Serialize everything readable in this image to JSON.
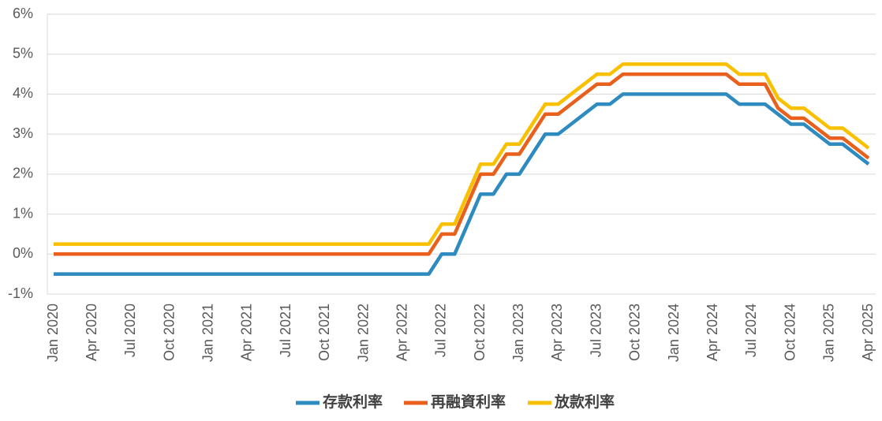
{
  "chart_data": {
    "type": "line",
    "categories": [
      "Jan 2020",
      null,
      null,
      "Apr 2020",
      null,
      null,
      "Jul 2020",
      null,
      null,
      "Oct 2020",
      null,
      null,
      "Jan 2021",
      null,
      null,
      "Apr 2021",
      null,
      null,
      "Jul 2021",
      null,
      null,
      "Oct 2021",
      null,
      null,
      "Jan 2022",
      null,
      null,
      "Apr 2022",
      null,
      null,
      "Jul 2022",
      null,
      null,
      "Oct 2022",
      null,
      null,
      "Jan 2023",
      null,
      null,
      "Apr 2023",
      null,
      null,
      "Jul 2023",
      null,
      null,
      "Oct 2023",
      null,
      null,
      "Jan 2024",
      null,
      null,
      "Apr 2024",
      null,
      null,
      "Jul 2024",
      null,
      null,
      "Oct 2024",
      null,
      null,
      "Jan 2025",
      null,
      null,
      "Apr 2025"
    ],
    "series": [
      {
        "name": "存款利率",
        "color": "#2e8bc0",
        "values": [
          -0.5,
          -0.5,
          -0.5,
          -0.5,
          -0.5,
          -0.5,
          -0.5,
          -0.5,
          -0.5,
          -0.5,
          -0.5,
          -0.5,
          -0.5,
          -0.5,
          -0.5,
          -0.5,
          -0.5,
          -0.5,
          -0.5,
          -0.5,
          -0.5,
          -0.5,
          -0.5,
          -0.5,
          -0.5,
          -0.5,
          -0.5,
          -0.5,
          -0.5,
          -0.5,
          0,
          0,
          0.75,
          1.5,
          1.5,
          2,
          2,
          2.5,
          3,
          3,
          3.25,
          3.5,
          3.75,
          3.75,
          4,
          4,
          4,
          4,
          4,
          4,
          4,
          4,
          4,
          3.75,
          3.75,
          3.75,
          3.5,
          3.25,
          3.25,
          3,
          2.75,
          2.75,
          2.5,
          2.25
        ]
      },
      {
        "name": "再融資利率",
        "color": "#e8601c",
        "values": [
          0,
          0,
          0,
          0,
          0,
          0,
          0,
          0,
          0,
          0,
          0,
          0,
          0,
          0,
          0,
          0,
          0,
          0,
          0,
          0,
          0,
          0,
          0,
          0,
          0,
          0,
          0,
          0,
          0,
          0,
          0.5,
          0.5,
          1.25,
          2,
          2,
          2.5,
          2.5,
          3,
          3.5,
          3.5,
          3.75,
          4,
          4.25,
          4.25,
          4.5,
          4.5,
          4.5,
          4.5,
          4.5,
          4.5,
          4.5,
          4.5,
          4.5,
          4.25,
          4.25,
          4.25,
          3.65,
          3.4,
          3.4,
          3.15,
          2.9,
          2.9,
          2.65,
          2.4
        ]
      },
      {
        "name": "放款利率",
        "color": "#f9c000",
        "values": [
          0.25,
          0.25,
          0.25,
          0.25,
          0.25,
          0.25,
          0.25,
          0.25,
          0.25,
          0.25,
          0.25,
          0.25,
          0.25,
          0.25,
          0.25,
          0.25,
          0.25,
          0.25,
          0.25,
          0.25,
          0.25,
          0.25,
          0.25,
          0.25,
          0.25,
          0.25,
          0.25,
          0.25,
          0.25,
          0.25,
          0.75,
          0.75,
          1.5,
          2.25,
          2.25,
          2.75,
          2.75,
          3.25,
          3.75,
          3.75,
          4,
          4.25,
          4.5,
          4.5,
          4.75,
          4.75,
          4.75,
          4.75,
          4.75,
          4.75,
          4.75,
          4.75,
          4.75,
          4.5,
          4.5,
          4.5,
          3.9,
          3.65,
          3.65,
          3.4,
          3.15,
          3.15,
          2.9,
          2.65
        ]
      }
    ],
    "ylim": [
      -1,
      6
    ],
    "yticks": [
      {
        "value": -1,
        "label": "-1%"
      },
      {
        "value": 0,
        "label": "0%"
      },
      {
        "value": 1,
        "label": "1%"
      },
      {
        "value": 2,
        "label": "2%"
      },
      {
        "value": 3,
        "label": "3%"
      },
      {
        "value": 4,
        "label": "4%"
      },
      {
        "value": 5,
        "label": "5%"
      },
      {
        "value": 6,
        "label": "6%"
      }
    ],
    "grid": true,
    "legend": "bottom"
  }
}
